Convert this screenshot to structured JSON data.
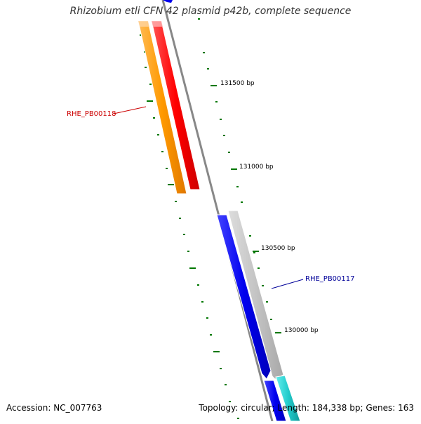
{
  "title": "Rhizobium etli CFN 42 plasmid p42b, complete sequence",
  "footer": {
    "accession": "Accession: NC_007763",
    "summary": "Topology: circular; Length: 184,338 bp; Genes: 163"
  },
  "scale": {
    "labels": [
      "131500 bp",
      "131000 bp",
      "130500 bp",
      "130000 bp"
    ]
  },
  "genes": [
    {
      "label": "RHE_PB00118",
      "color": "#cc0000"
    },
    {
      "label": "RHE_PB00117",
      "color": "#000099"
    }
  ],
  "colors": {
    "backbone": "#8a8a8a",
    "ticks": "#007700",
    "orange": "#ff9900",
    "red": "#ff0000",
    "blue": "#0000ee",
    "gray_feature": "#bbbbbb",
    "cyan": "#22cccc"
  }
}
